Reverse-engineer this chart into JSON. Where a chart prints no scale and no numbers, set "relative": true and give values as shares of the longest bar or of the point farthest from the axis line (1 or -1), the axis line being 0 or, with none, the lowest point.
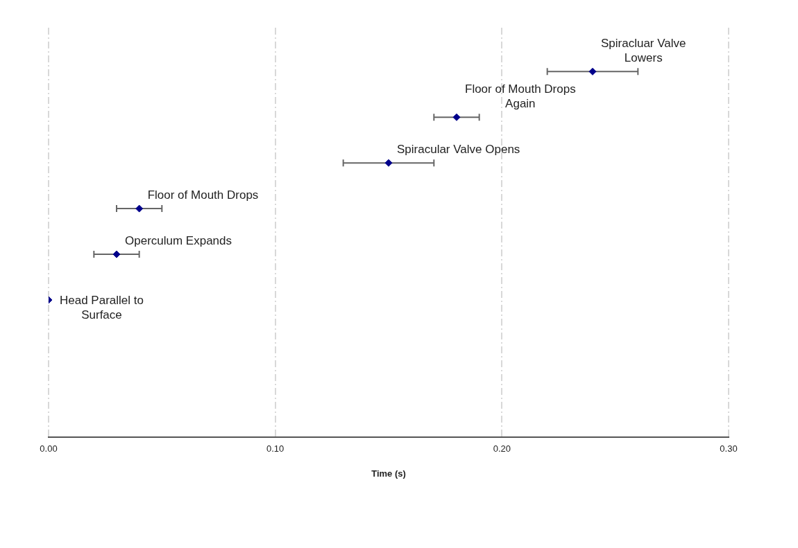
{
  "chart_data": {
    "type": "scatter",
    "xlabel": "Time (s)",
    "relative": true,
    "x": [
      0,
      0.03,
      0.04,
      0.15,
      0.18,
      0.24
    ],
    "values": [
      0.375,
      0.5,
      0.625,
      0.75,
      0.875,
      1
    ],
    "xerrors": [
      null,
      0.01,
      0.01,
      0.02,
      0.01,
      0.02
    ],
    "color": "#00008b",
    "marker": "diamond",
    "grid": "x",
    "legend": false,
    "xlim": [
      0,
      0.3
    ],
    "xticks": [
      {
        "value": 0,
        "label": "0.00"
      },
      {
        "value": 0.1,
        "label": "0.10"
      },
      {
        "value": 0.2,
        "label": "0.20"
      },
      {
        "value": 0.3,
        "label": "0.30"
      }
    ],
    "annotations": [
      {
        "text": "Head Parallel to\nSurface",
        "x": 0,
        "y": 0.375
      },
      {
        "text": "Operculum Expands",
        "x": 0.03,
        "y": 0.5
      },
      {
        "text": "Floor of Mouth Drops",
        "x": 0.04,
        "y": 0.625
      },
      {
        "text": "Spiracular Valve Opens",
        "x": 0.15,
        "y": 0.75
      },
      {
        "text": "Floor of Mouth Drops\nAgain",
        "x": 0.18,
        "y": 0.875
      },
      {
        "text": "Spiracluar Valve\nLowers",
        "x": 0.24,
        "y": 1
      }
    ]
  }
}
